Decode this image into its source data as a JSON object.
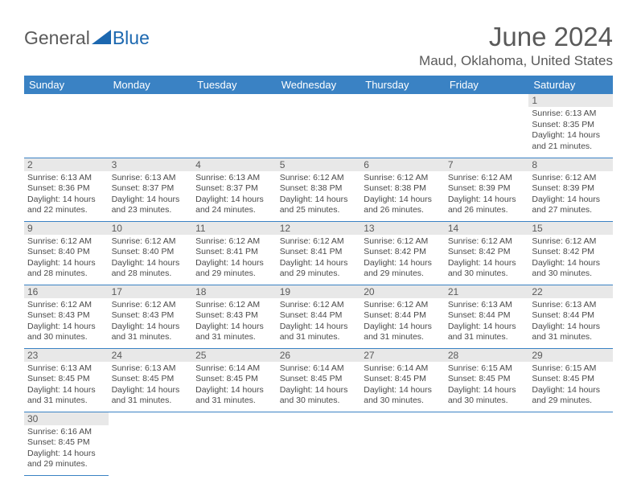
{
  "logo": {
    "text1": "General",
    "text2": "Blue"
  },
  "title": "June 2024",
  "location": "Maud, Oklahoma, United States",
  "colors": {
    "header_bg": "#3a82c4",
    "header_text": "#ffffff",
    "brand_blue": "#1c68b0",
    "text_gray": "#5a5a5a",
    "daynum_bg": "#e8e8e8",
    "border": "#3a82c4"
  },
  "day_headers": [
    "Sunday",
    "Monday",
    "Tuesday",
    "Wednesday",
    "Thursday",
    "Friday",
    "Saturday"
  ],
  "weeks": [
    [
      null,
      null,
      null,
      null,
      null,
      null,
      {
        "n": "1",
        "sr": "Sunrise: 6:13 AM",
        "ss": "Sunset: 8:35 PM",
        "d1": "Daylight: 14 hours",
        "d2": "and 21 minutes."
      }
    ],
    [
      {
        "n": "2",
        "sr": "Sunrise: 6:13 AM",
        "ss": "Sunset: 8:36 PM",
        "d1": "Daylight: 14 hours",
        "d2": "and 22 minutes."
      },
      {
        "n": "3",
        "sr": "Sunrise: 6:13 AM",
        "ss": "Sunset: 8:37 PM",
        "d1": "Daylight: 14 hours",
        "d2": "and 23 minutes."
      },
      {
        "n": "4",
        "sr": "Sunrise: 6:13 AM",
        "ss": "Sunset: 8:37 PM",
        "d1": "Daylight: 14 hours",
        "d2": "and 24 minutes."
      },
      {
        "n": "5",
        "sr": "Sunrise: 6:12 AM",
        "ss": "Sunset: 8:38 PM",
        "d1": "Daylight: 14 hours",
        "d2": "and 25 minutes."
      },
      {
        "n": "6",
        "sr": "Sunrise: 6:12 AM",
        "ss": "Sunset: 8:38 PM",
        "d1": "Daylight: 14 hours",
        "d2": "and 26 minutes."
      },
      {
        "n": "7",
        "sr": "Sunrise: 6:12 AM",
        "ss": "Sunset: 8:39 PM",
        "d1": "Daylight: 14 hours",
        "d2": "and 26 minutes."
      },
      {
        "n": "8",
        "sr": "Sunrise: 6:12 AM",
        "ss": "Sunset: 8:39 PM",
        "d1": "Daylight: 14 hours",
        "d2": "and 27 minutes."
      }
    ],
    [
      {
        "n": "9",
        "sr": "Sunrise: 6:12 AM",
        "ss": "Sunset: 8:40 PM",
        "d1": "Daylight: 14 hours",
        "d2": "and 28 minutes."
      },
      {
        "n": "10",
        "sr": "Sunrise: 6:12 AM",
        "ss": "Sunset: 8:40 PM",
        "d1": "Daylight: 14 hours",
        "d2": "and 28 minutes."
      },
      {
        "n": "11",
        "sr": "Sunrise: 6:12 AM",
        "ss": "Sunset: 8:41 PM",
        "d1": "Daylight: 14 hours",
        "d2": "and 29 minutes."
      },
      {
        "n": "12",
        "sr": "Sunrise: 6:12 AM",
        "ss": "Sunset: 8:41 PM",
        "d1": "Daylight: 14 hours",
        "d2": "and 29 minutes."
      },
      {
        "n": "13",
        "sr": "Sunrise: 6:12 AM",
        "ss": "Sunset: 8:42 PM",
        "d1": "Daylight: 14 hours",
        "d2": "and 29 minutes."
      },
      {
        "n": "14",
        "sr": "Sunrise: 6:12 AM",
        "ss": "Sunset: 8:42 PM",
        "d1": "Daylight: 14 hours",
        "d2": "and 30 minutes."
      },
      {
        "n": "15",
        "sr": "Sunrise: 6:12 AM",
        "ss": "Sunset: 8:42 PM",
        "d1": "Daylight: 14 hours",
        "d2": "and 30 minutes."
      }
    ],
    [
      {
        "n": "16",
        "sr": "Sunrise: 6:12 AM",
        "ss": "Sunset: 8:43 PM",
        "d1": "Daylight: 14 hours",
        "d2": "and 30 minutes."
      },
      {
        "n": "17",
        "sr": "Sunrise: 6:12 AM",
        "ss": "Sunset: 8:43 PM",
        "d1": "Daylight: 14 hours",
        "d2": "and 31 minutes."
      },
      {
        "n": "18",
        "sr": "Sunrise: 6:12 AM",
        "ss": "Sunset: 8:43 PM",
        "d1": "Daylight: 14 hours",
        "d2": "and 31 minutes."
      },
      {
        "n": "19",
        "sr": "Sunrise: 6:12 AM",
        "ss": "Sunset: 8:44 PM",
        "d1": "Daylight: 14 hours",
        "d2": "and 31 minutes."
      },
      {
        "n": "20",
        "sr": "Sunrise: 6:12 AM",
        "ss": "Sunset: 8:44 PM",
        "d1": "Daylight: 14 hours",
        "d2": "and 31 minutes."
      },
      {
        "n": "21",
        "sr": "Sunrise: 6:13 AM",
        "ss": "Sunset: 8:44 PM",
        "d1": "Daylight: 14 hours",
        "d2": "and 31 minutes."
      },
      {
        "n": "22",
        "sr": "Sunrise: 6:13 AM",
        "ss": "Sunset: 8:44 PM",
        "d1": "Daylight: 14 hours",
        "d2": "and 31 minutes."
      }
    ],
    [
      {
        "n": "23",
        "sr": "Sunrise: 6:13 AM",
        "ss": "Sunset: 8:45 PM",
        "d1": "Daylight: 14 hours",
        "d2": "and 31 minutes."
      },
      {
        "n": "24",
        "sr": "Sunrise: 6:13 AM",
        "ss": "Sunset: 8:45 PM",
        "d1": "Daylight: 14 hours",
        "d2": "and 31 minutes."
      },
      {
        "n": "25",
        "sr": "Sunrise: 6:14 AM",
        "ss": "Sunset: 8:45 PM",
        "d1": "Daylight: 14 hours",
        "d2": "and 31 minutes."
      },
      {
        "n": "26",
        "sr": "Sunrise: 6:14 AM",
        "ss": "Sunset: 8:45 PM",
        "d1": "Daylight: 14 hours",
        "d2": "and 30 minutes."
      },
      {
        "n": "27",
        "sr": "Sunrise: 6:14 AM",
        "ss": "Sunset: 8:45 PM",
        "d1": "Daylight: 14 hours",
        "d2": "and 30 minutes."
      },
      {
        "n": "28",
        "sr": "Sunrise: 6:15 AM",
        "ss": "Sunset: 8:45 PM",
        "d1": "Daylight: 14 hours",
        "d2": "and 30 minutes."
      },
      {
        "n": "29",
        "sr": "Sunrise: 6:15 AM",
        "ss": "Sunset: 8:45 PM",
        "d1": "Daylight: 14 hours",
        "d2": "and 29 minutes."
      }
    ],
    [
      {
        "n": "30",
        "sr": "Sunrise: 6:16 AM",
        "ss": "Sunset: 8:45 PM",
        "d1": "Daylight: 14 hours",
        "d2": "and 29 minutes."
      },
      null,
      null,
      null,
      null,
      null,
      null
    ]
  ]
}
